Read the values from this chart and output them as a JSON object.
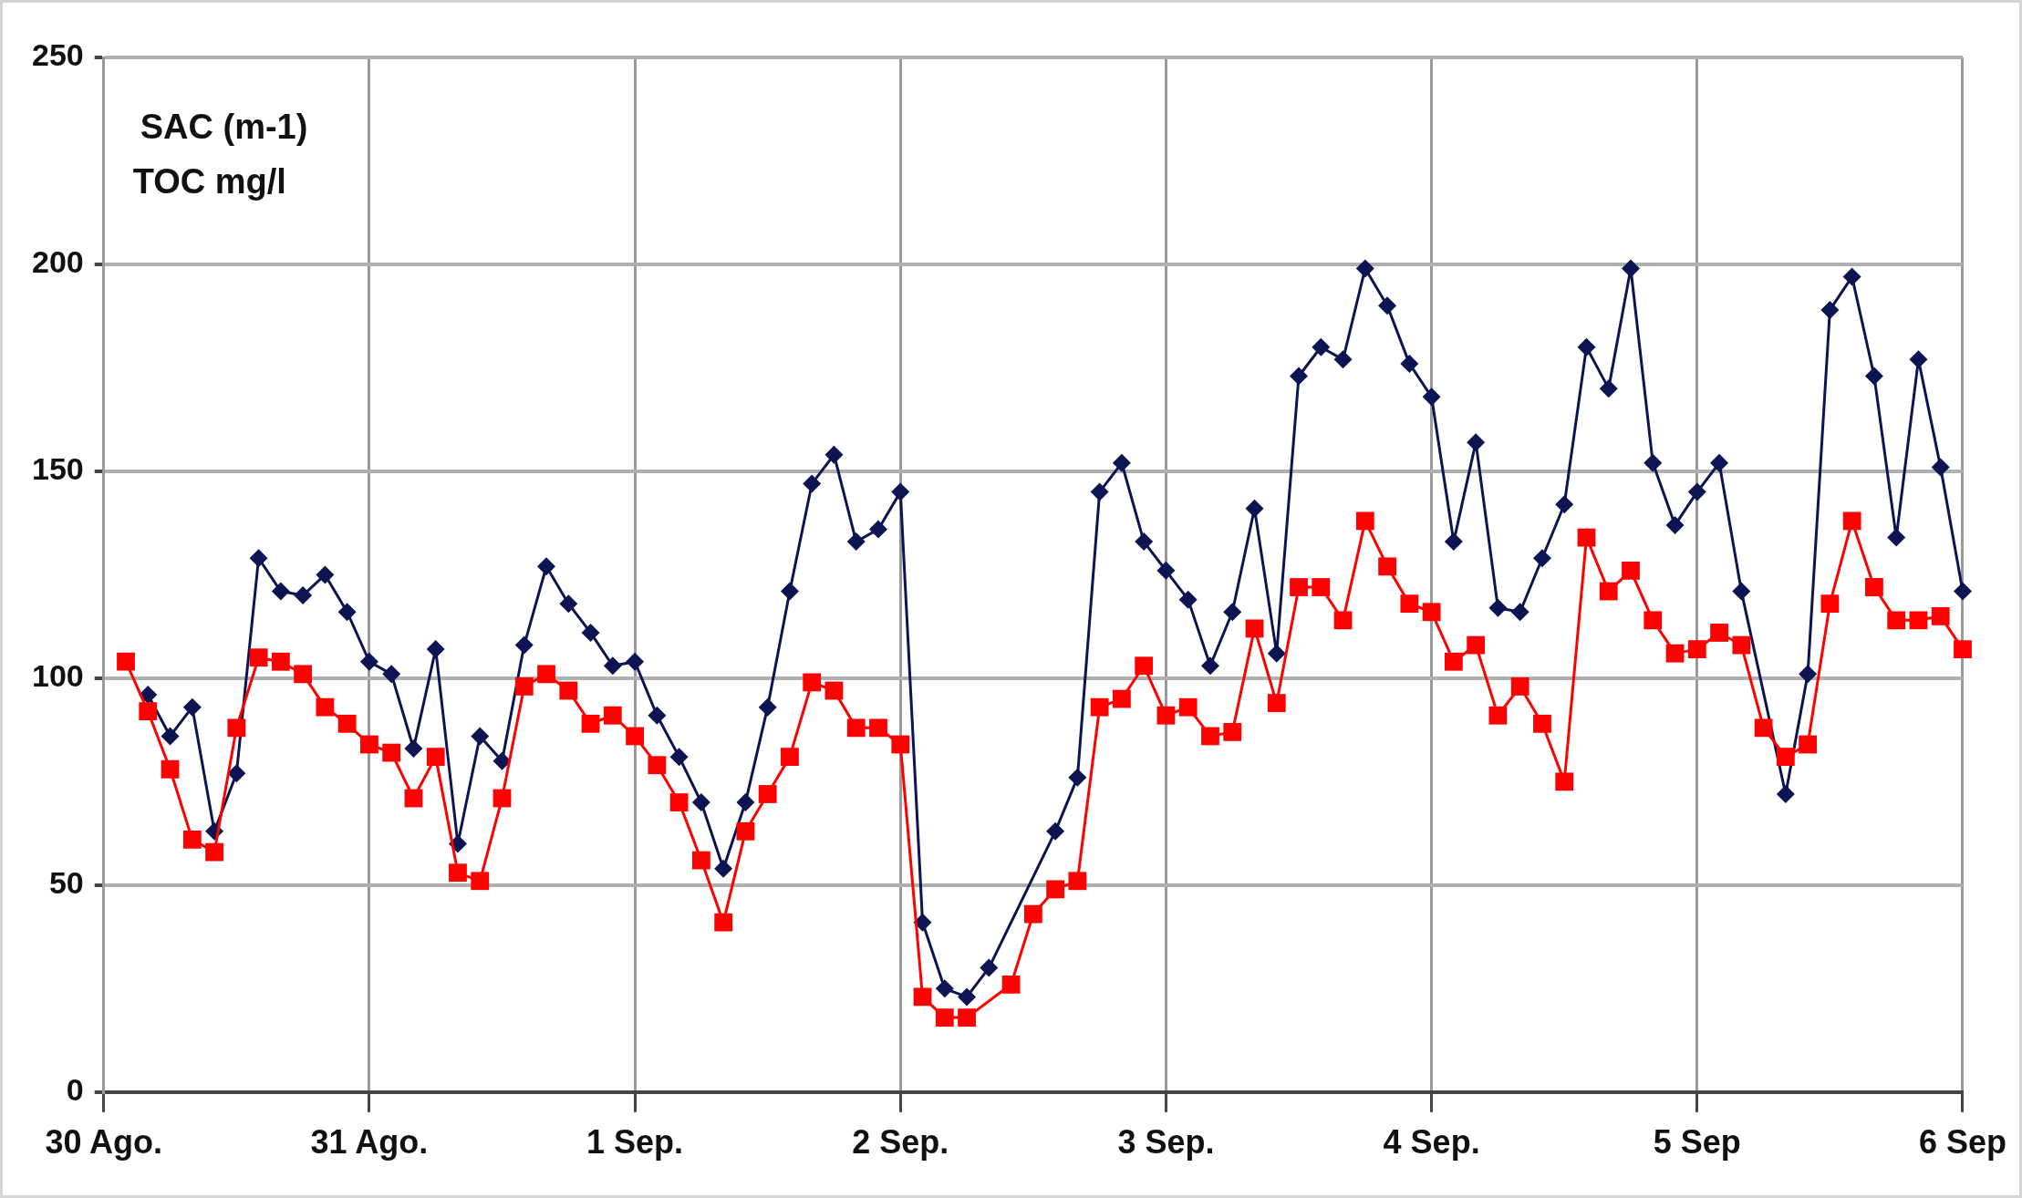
{
  "chart_data": {
    "type": "line",
    "annotations": [
      "SAC (m-1)",
      "TOC mg/l"
    ],
    "categories": [
      "30 Ago.",
      null,
      null,
      null,
      null,
      null,
      null,
      null,
      null,
      null,
      null,
      null,
      "31 Ago.",
      null,
      null,
      null,
      null,
      null,
      null,
      null,
      null,
      null,
      null,
      null,
      "1 Sep.",
      null,
      null,
      null,
      null,
      null,
      null,
      null,
      null,
      null,
      null,
      null,
      "2 Sep.",
      null,
      null,
      null,
      null,
      null,
      null,
      null,
      null,
      null,
      null,
      null,
      "3 Sep.",
      null,
      null,
      null,
      null,
      null,
      null,
      null,
      null,
      null,
      null,
      null,
      "4 Sep.",
      null,
      null,
      null,
      null,
      null,
      null,
      null,
      null,
      null,
      null,
      null,
      "5 Sep",
      null,
      null,
      null,
      null,
      null,
      null,
      null,
      null,
      null,
      null,
      null,
      "6 Sep"
    ],
    "ylim": [
      0,
      250
    ],
    "yticks": [
      0,
      50,
      100,
      150,
      200,
      250
    ],
    "grid": true,
    "line_style": "solid",
    "series": [
      {
        "color": "#0d1452",
        "marker": "diamond",
        "values": [
          null,
          null,
          96,
          86,
          93,
          63,
          77,
          129,
          121,
          120,
          125,
          116,
          104,
          101,
          83,
          107,
          60,
          86,
          80,
          108,
          127,
          118,
          111,
          103,
          104,
          91,
          81,
          70,
          54,
          70,
          93,
          121,
          147,
          154,
          133,
          136,
          145,
          41,
          25,
          23,
          30,
          null,
          null,
          63,
          76,
          145,
          152,
          133,
          126,
          119,
          103,
          116,
          141,
          106,
          173,
          180,
          177,
          199,
          190,
          176,
          168,
          133,
          157,
          117,
          116,
          129,
          142,
          180,
          170,
          199,
          152,
          137,
          145,
          152,
          121,
          null,
          72,
          101,
          189,
          197,
          173,
          134,
          177,
          151,
          121
        ]
      },
      {
        "color": "#ff0000",
        "marker": "square",
        "values": [
          null,
          104,
          92,
          78,
          61,
          58,
          88,
          105,
          104,
          101,
          93,
          89,
          84,
          82,
          71,
          81,
          53,
          51,
          71,
          98,
          101,
          97,
          89,
          91,
          86,
          79,
          70,
          56,
          41,
          63,
          72,
          81,
          99,
          97,
          88,
          88,
          84,
          23,
          18,
          18,
          null,
          26,
          43,
          49,
          51,
          93,
          95,
          103,
          91,
          93,
          86,
          87,
          112,
          94,
          122,
          122,
          114,
          138,
          127,
          118,
          116,
          104,
          108,
          91,
          98,
          89,
          75,
          134,
          121,
          126,
          114,
          106,
          107,
          111,
          108,
          88,
          81,
          84,
          118,
          138,
          122,
          114,
          114,
          115,
          107
        ]
      }
    ]
  }
}
